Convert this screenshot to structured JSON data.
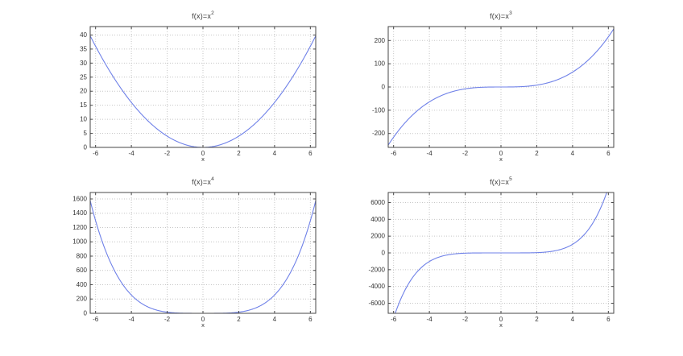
{
  "figure": {
    "background": "#ffffff",
    "curve_color": "#6f81e8",
    "grid_color": "#c6c6c6",
    "axis_color": "#474747",
    "label_color": "#333333"
  },
  "chart_data": [
    {
      "id": "x2",
      "type": "line",
      "title_base": "f(x)=x",
      "title_exp": "2",
      "xlabel": "x",
      "function": "x^2",
      "exponent": 2,
      "x_start": -6.3,
      "x_end": 6.3,
      "x_step": 0.05,
      "xlim": [
        -6.3,
        6.3
      ],
      "ylim": [
        0,
        43
      ],
      "xticks": [
        -6,
        -4,
        -2,
        0,
        2,
        4,
        6
      ],
      "yticks": [
        0,
        5,
        10,
        15,
        20,
        25,
        30,
        35,
        40
      ],
      "grid": "dotted",
      "legend": "none"
    },
    {
      "id": "x3",
      "type": "line",
      "title_base": "f(x)=x",
      "title_exp": "3",
      "xlabel": "x",
      "function": "x^3",
      "exponent": 3,
      "x_start": -6.3,
      "x_end": 6.3,
      "x_step": 0.05,
      "xlim": [
        -6.3,
        6.3
      ],
      "ylim": [
        -260,
        260
      ],
      "xticks": [
        -6,
        -4,
        -2,
        0,
        2,
        4,
        6
      ],
      "yticks": [
        -200,
        -100,
        0,
        100,
        200
      ],
      "grid": "dotted",
      "legend": "none"
    },
    {
      "id": "x4",
      "type": "line",
      "title_base": "f(x)=x",
      "title_exp": "4",
      "xlabel": "x",
      "function": "x^4",
      "exponent": 4,
      "x_start": -6.3,
      "x_end": 6.3,
      "x_step": 0.05,
      "xlim": [
        -6.3,
        6.3
      ],
      "ylim": [
        0,
        1690
      ],
      "xticks": [
        -6,
        -4,
        -2,
        0,
        2,
        4,
        6
      ],
      "yticks": [
        0,
        200,
        400,
        600,
        800,
        1000,
        1200,
        1400,
        1600
      ],
      "grid": "dotted",
      "legend": "none"
    },
    {
      "id": "x5",
      "type": "line",
      "title_base": "f(x)=x",
      "title_exp": "5",
      "xlabel": "x",
      "function": "x^5",
      "exponent": 5,
      "x_start": -6.3,
      "x_end": 6.3,
      "x_step": 0.05,
      "xlim": [
        -6.3,
        6.3
      ],
      "ylim": [
        -7200,
        7200
      ],
      "xticks": [
        -6,
        -4,
        -2,
        0,
        2,
        4,
        6
      ],
      "yticks": [
        -6000,
        -4000,
        -2000,
        0,
        2000,
        4000,
        6000
      ],
      "grid": "dotted",
      "legend": "none"
    }
  ]
}
